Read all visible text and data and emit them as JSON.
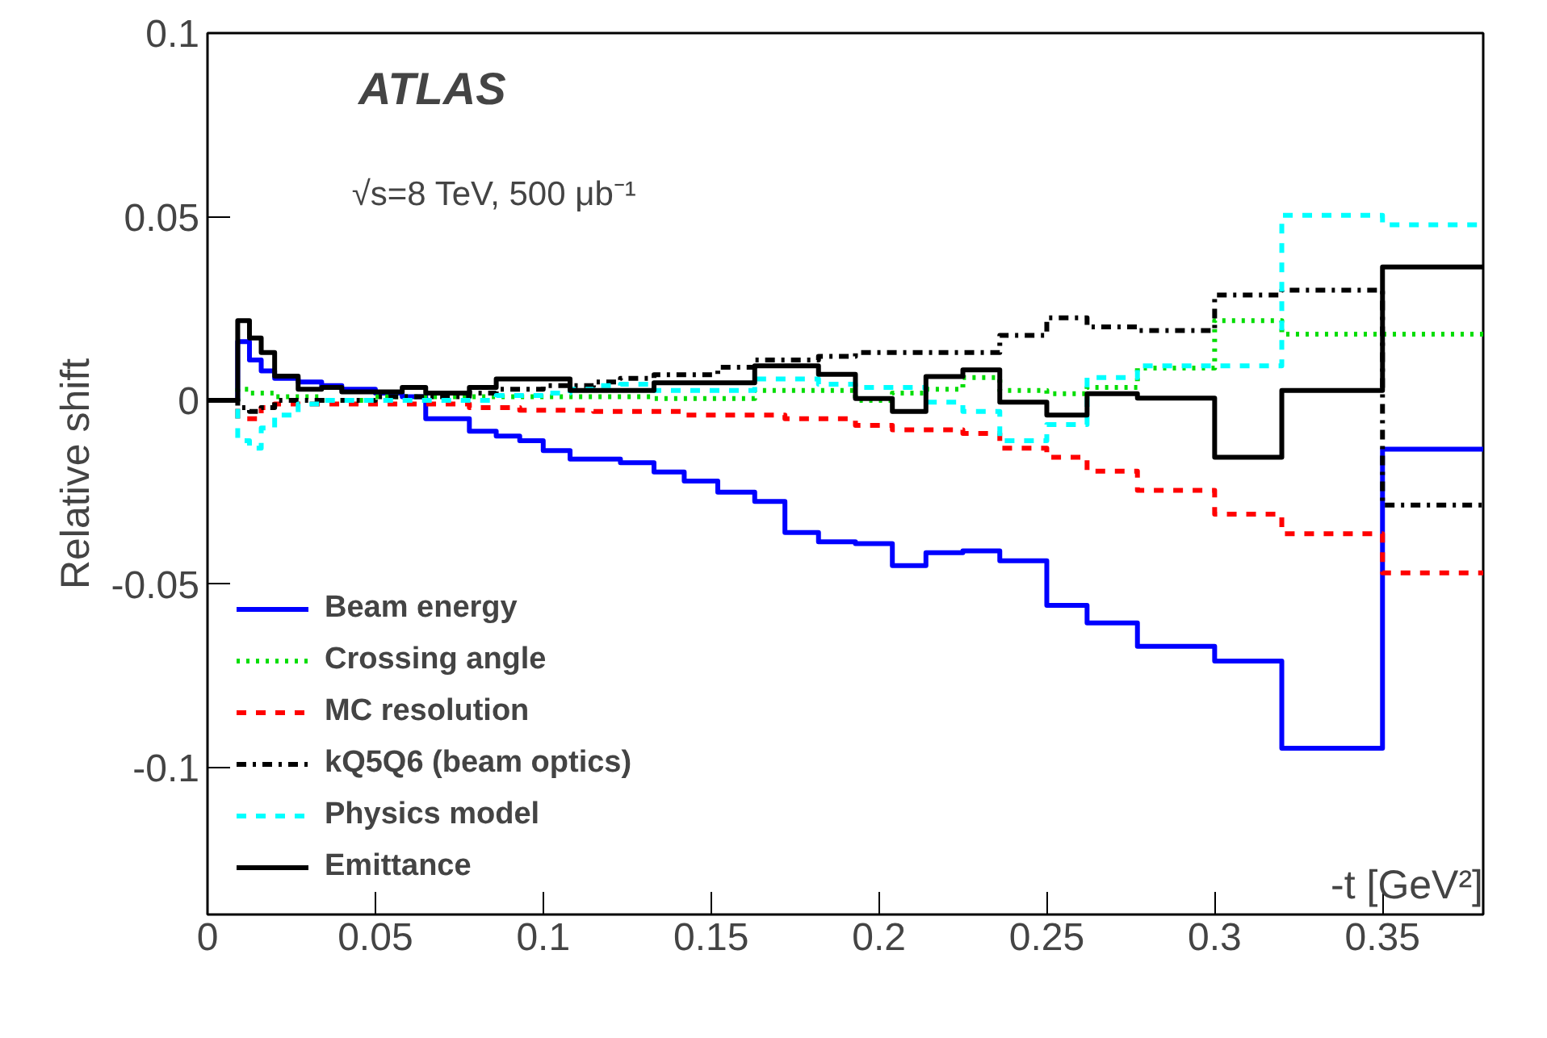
{
  "chart_data": {
    "type": "step",
    "xlabel": "-t [GeV²]",
    "ylabel": "Relative shift",
    "annotations": [
      "ATLAS",
      "√s=8 TeV, 500 μb⁻¹"
    ],
    "x": [
      0,
      0.009,
      0.0125,
      0.016,
      0.02,
      0.027,
      0.034,
      0.04,
      0.05,
      0.058,
      0.065,
      0.078,
      0.086,
      0.093,
      0.1,
      0.108,
      0.115,
      0.123,
      0.133,
      0.142,
      0.152,
      0.163,
      0.172,
      0.182,
      0.193,
      0.204,
      0.214,
      0.225,
      0.236,
      0.25,
      0.262,
      0.277,
      0.3,
      0.32,
      0.35,
      0.38
    ],
    "series": [
      {
        "name": "Beam energy",
        "color": "#0000ff",
        "line_style": "solid",
        "values": [
          0,
          0.016,
          0.011,
          0.008,
          0.006,
          0.005,
          0.004,
          0.003,
          0.002,
          0.001,
          -0.005,
          -0.0084,
          -0.0097,
          -0.011,
          -0.0137,
          -0.016,
          -0.016,
          -0.017,
          -0.0195,
          -0.022,
          -0.025,
          -0.0275,
          -0.036,
          -0.0385,
          -0.039,
          -0.045,
          -0.0415,
          -0.041,
          -0.0437,
          -0.0558,
          -0.0606,
          -0.067,
          -0.071,
          -0.0947,
          -0.0133,
          -0.0133
        ]
      },
      {
        "name": "Crossing angle",
        "color": "#00dd00",
        "line_style": "dotted",
        "values": [
          0,
          0.003,
          0.002,
          0.002,
          0.001,
          0.001,
          0,
          0,
          0.001,
          0.001,
          0.001,
          0.001,
          0.001,
          0.001,
          0.001,
          0.001,
          0.001,
          0.001,
          0.0005,
          0.0005,
          0.0005,
          0.0027,
          0.0027,
          0.0027,
          0,
          0.002,
          0.003,
          0.0062,
          0.0027,
          0.0018,
          0.0035,
          0.0088,
          0.0217,
          0.018,
          0.018,
          0.018
        ]
      },
      {
        "name": "MC resolution",
        "color": "#ff0000",
        "line_style": "dashed",
        "values": [
          0,
          -0.005,
          -0.005,
          -0.002,
          -0.001,
          -0.001,
          -0.001,
          -0.001,
          -0.001,
          -0.001,
          -0.001,
          -0.002,
          -0.002,
          -0.0027,
          -0.0027,
          -0.0027,
          -0.003,
          -0.003,
          -0.003,
          -0.004,
          -0.004,
          -0.004,
          -0.005,
          -0.005,
          -0.0068,
          -0.008,
          -0.008,
          -0.009,
          -0.013,
          -0.0155,
          -0.0193,
          -0.0245,
          -0.031,
          -0.0363,
          -0.047,
          -0.047
        ]
      },
      {
        "name": "kQ5Q6 (beam optics)",
        "color": "#000000",
        "line_style": "dashdot",
        "values": [
          0,
          -0.002,
          -0.003,
          -0.002,
          0,
          0,
          0,
          0,
          0.001,
          0.001,
          0.001,
          0.002,
          0.003,
          0.003,
          0.004,
          0.004,
          0.005,
          0.006,
          0.007,
          0.007,
          0.009,
          0.011,
          0.011,
          0.012,
          0.013,
          0.013,
          0.013,
          0.013,
          0.0177,
          0.0225,
          0.02,
          0.019,
          0.0287,
          0.03,
          -0.0285,
          -0.0285
        ]
      },
      {
        "name": "Physics model",
        "color": "#00ffff",
        "line_style": "dashed",
        "values": [
          0,
          -0.011,
          -0.013,
          -0.0075,
          -0.004,
          -0.001,
          0,
          0,
          0,
          0,
          0,
          0,
          0.0013,
          0.0013,
          0.002,
          0.003,
          0.004,
          0.0044,
          0.0027,
          0.0027,
          0.0027,
          0.0058,
          0.0058,
          0.0044,
          0.0035,
          0.0035,
          -0.0005,
          -0.003,
          -0.011,
          -0.0066,
          0.0062,
          0.0094,
          0.0094,
          0.0504,
          0.0478,
          0.0478
        ]
      },
      {
        "name": "Emittance",
        "color": "#000000",
        "line_style": "solid",
        "values": [
          0,
          0.0217,
          0.017,
          0.013,
          0.0066,
          0.003,
          0.0035,
          0.0023,
          0.0023,
          0.0035,
          0.002,
          0.0035,
          0.0058,
          0.0058,
          0.0058,
          0.0027,
          0.0027,
          0.0027,
          0.0048,
          0.0048,
          0.0048,
          0.0094,
          0.0094,
          0.0071,
          0.0005,
          -0.003,
          0.0065,
          0.0083,
          -0.0005,
          -0.004,
          0.0018,
          0.0006,
          -0.0155,
          0.0027,
          0.0363,
          0.0363
        ]
      }
    ],
    "xlim": [
      0,
      0.38
    ],
    "ylim": [
      -0.14,
      0.1
    ],
    "xticks": [
      0,
      0.05,
      0.1,
      0.15,
      0.2,
      0.25,
      0.3,
      0.35
    ],
    "yticks": [
      -0.1,
      -0.05,
      0,
      0.05,
      0.1
    ],
    "grid": false,
    "legend": "bottom left"
  }
}
